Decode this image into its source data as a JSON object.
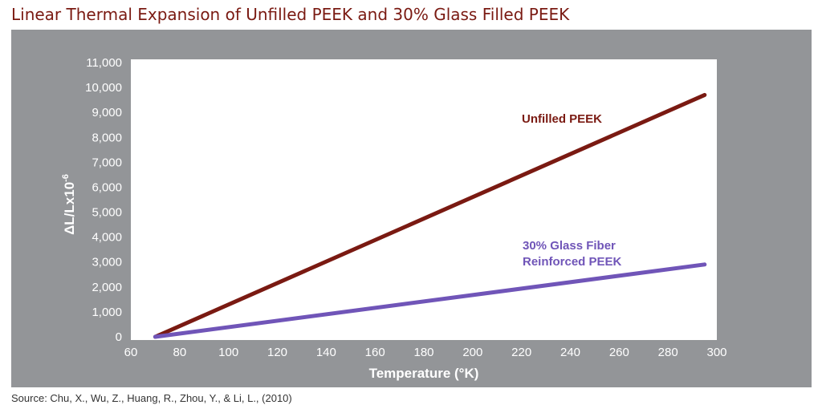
{
  "title": "Linear Thermal Expansion of Unfilled PEEK and 30% Glass Filled PEEK",
  "source": "Source: Chu, X., Wu, Z., Huang, R., Zhou, Y., & Li, L., (2010)",
  "colors": {
    "title": "#7a1a12",
    "panel": "#939598",
    "plot_background": "#ffffff",
    "unfilled": "#7a1a12",
    "glass": "#7055b8"
  },
  "chart_data": {
    "type": "line",
    "xlabel": "Temperature (°K)",
    "ylabel_base": "ΔL/Lx10",
    "ylabel_exponent": "-6",
    "xlim": [
      60,
      300
    ],
    "ylim": [
      0,
      11000
    ],
    "x_ticks": [
      60,
      80,
      100,
      120,
      140,
      160,
      180,
      200,
      220,
      240,
      260,
      280,
      300
    ],
    "x_tick_labels": [
      "60",
      "80",
      "100",
      "120",
      "140",
      "160",
      "180",
      "200",
      "220",
      "240",
      "260",
      "280",
      "300"
    ],
    "y_ticks": [
      0,
      1000,
      2000,
      3000,
      4000,
      5000,
      6000,
      7000,
      8000,
      9000,
      10000,
      11000
    ],
    "y_tick_labels": [
      "0",
      "1,000",
      "2,000",
      "3,000",
      "4,000",
      "5,000",
      "6,000",
      "7,000",
      "8,000",
      "9,000",
      "10,000",
      "11,000"
    ],
    "grid": false,
    "series": [
      {
        "name": "Unfilled PEEK",
        "label_lines": [
          "Unfilled PEEK"
        ],
        "color": "#7a1a12",
        "x": [
          70,
          295
        ],
        "y": [
          0,
          9700
        ]
      },
      {
        "name": "30% Glass Fiber Reinforced PEEK",
        "label_lines": [
          "30% Glass Fiber",
          "Reinforced PEEK"
        ],
        "color": "#7055b8",
        "x": [
          70,
          295
        ],
        "y": [
          0,
          2900
        ]
      }
    ]
  }
}
